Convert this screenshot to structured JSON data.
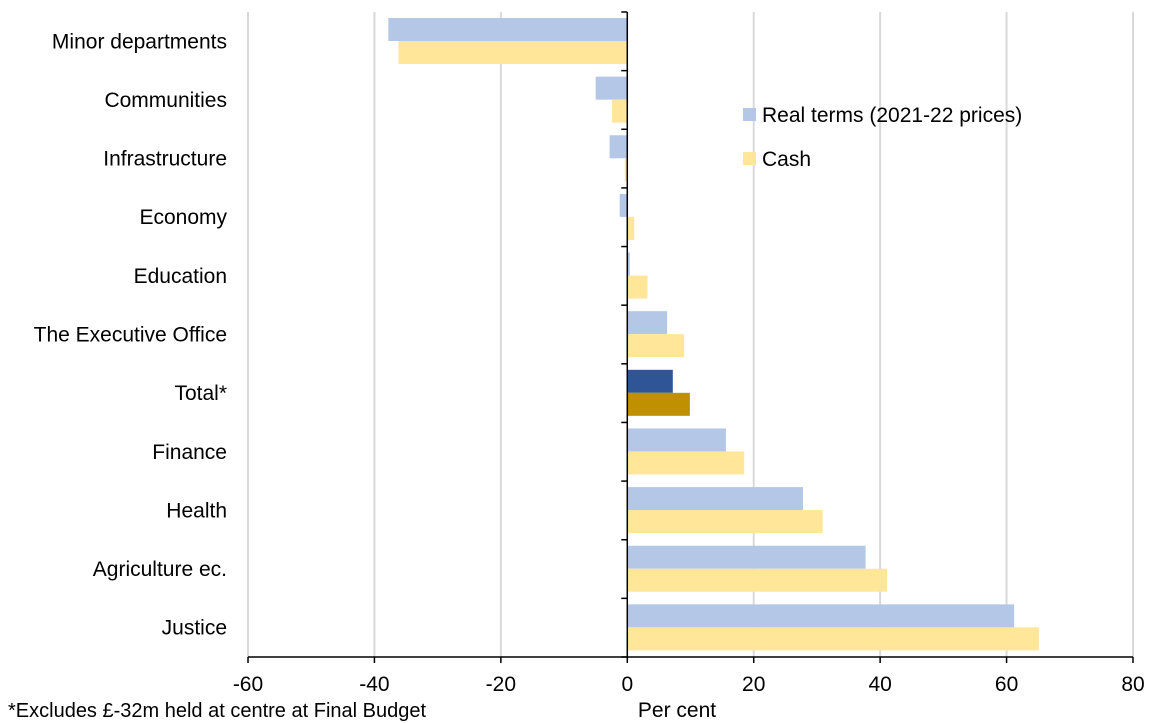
{
  "chart_data": {
    "type": "bar",
    "orientation": "horizontal",
    "xlabel": "Per cent",
    "xlim": [
      -60,
      80
    ],
    "xticks": [
      -60,
      -40,
      -20,
      0,
      20,
      40,
      60,
      80
    ],
    "grid": true,
    "legend_position": "top-right",
    "categories": [
      "Minor departments",
      "Communities",
      "Infrastructure",
      "Economy",
      "Education",
      "The Executive Office",
      "Total*",
      "Finance",
      "Health",
      "Agriculture ec.",
      "Justice"
    ],
    "series": [
      {
        "name": "Real terms (2021-22 prices)",
        "color": "#b4c7e7",
        "highlight_color": "#2f5597",
        "values": [
          -37.8,
          -5.0,
          -2.8,
          -1.2,
          0.4,
          6.3,
          7.2,
          15.6,
          27.8,
          37.7,
          61.2
        ]
      },
      {
        "name": "Cash",
        "color": "#ffe699",
        "highlight_color": "#bf9000",
        "values": [
          -36.2,
          -2.4,
          -0.4,
          1.1,
          3.2,
          9.0,
          9.9,
          18.5,
          30.9,
          41.1,
          65.1
        ]
      }
    ],
    "highlight_category": "Total*",
    "footnote": "*Excludes £-32m held at centre at Final Budget"
  }
}
